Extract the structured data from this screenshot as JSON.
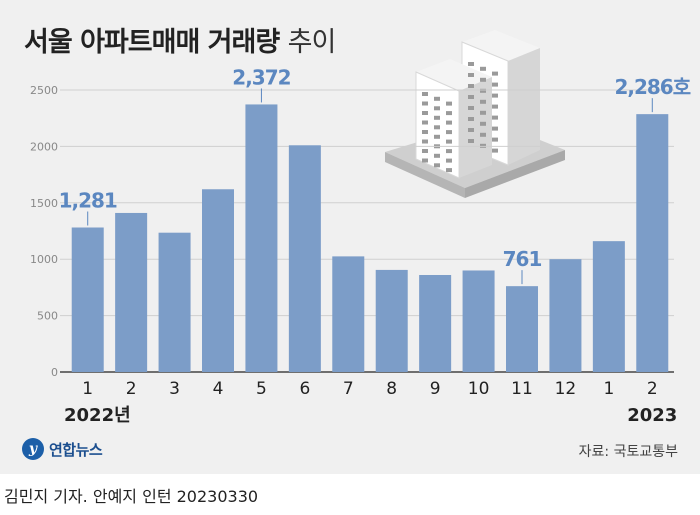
{
  "title": {
    "bold": "서울 아파트매매 거래량",
    "light": "추이"
  },
  "chart_data": {
    "type": "bar",
    "categories": [
      "1",
      "2",
      "3",
      "4",
      "5",
      "6",
      "7",
      "8",
      "9",
      "10",
      "11",
      "12",
      "1",
      "2"
    ],
    "values": [
      1281,
      1410,
      1235,
      1620,
      2372,
      2010,
      1025,
      905,
      860,
      900,
      761,
      1000,
      1160,
      2286
    ],
    "ylim": [
      0,
      2500
    ],
    "yticks": [
      0,
      500,
      1000,
      1500,
      2000,
      2500
    ],
    "highlights": [
      {
        "index": 0,
        "label": "1,281"
      },
      {
        "index": 4,
        "label": "2,372"
      },
      {
        "index": 10,
        "label": "761"
      },
      {
        "index": 13,
        "label": "2,286호"
      }
    ],
    "year_labels": [
      {
        "index": 0,
        "text": "2022년"
      },
      {
        "index": 13,
        "text": "2023"
      }
    ],
    "bar_color": "#7c9dc8",
    "label_color": "#5b87c0",
    "grid": true
  },
  "logo": {
    "text": "연합뉴스"
  },
  "source": "자료: 국토교통부",
  "credit": "김민지 기자. 안예지 인턴  20230330"
}
